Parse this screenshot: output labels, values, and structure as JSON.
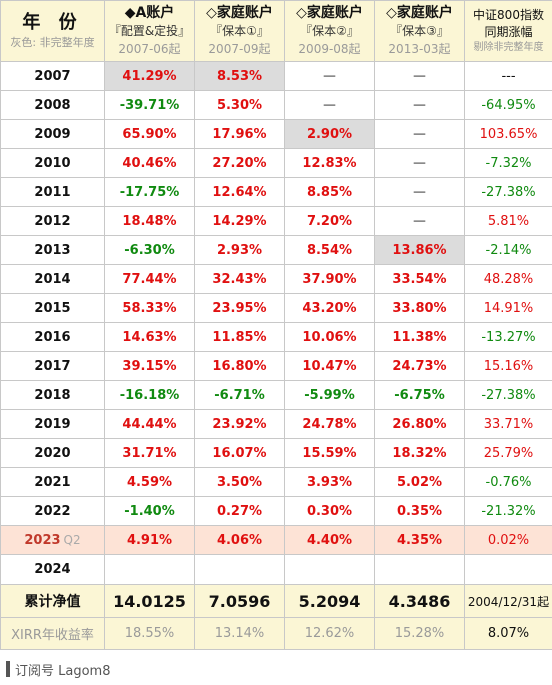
{
  "header": {
    "year_title": "年 份",
    "year_note": "灰色: 非完整年度",
    "columns": [
      {
        "title": "◆A账户",
        "subtitle": "『配置&定投』",
        "date": "2007-06起"
      },
      {
        "title": "◇家庭账户",
        "subtitle": "『保本①』",
        "date": "2007-09起"
      },
      {
        "title": "◇家庭账户",
        "subtitle": "『保本②』",
        "date": "2009-08起"
      },
      {
        "title": "◇家庭账户",
        "subtitle": "『保本③』",
        "date": "2013-03起"
      }
    ],
    "index_title_1": "中证800指数",
    "index_title_2": "同期涨幅",
    "index_note": "剔除非完整年度"
  },
  "rows": [
    {
      "year": "2007",
      "q": "",
      "a": "41.29%",
      "b": "8.53%",
      "c": "—",
      "d": "—",
      "idx": "---"
    },
    {
      "year": "2008",
      "q": "",
      "a": "-39.71%",
      "b": "5.30%",
      "c": "—",
      "d": "—",
      "idx": "-64.95%"
    },
    {
      "year": "2009",
      "q": "",
      "a": "65.90%",
      "b": "17.96%",
      "c": "2.90%",
      "d": "—",
      "idx": "103.65%"
    },
    {
      "year": "2010",
      "q": "",
      "a": "40.46%",
      "b": "27.20%",
      "c": "12.83%",
      "d": "—",
      "idx": "-7.32%"
    },
    {
      "year": "2011",
      "q": "",
      "a": "-17.75%",
      "b": "12.64%",
      "c": "8.85%",
      "d": "—",
      "idx": "-27.38%"
    },
    {
      "year": "2012",
      "q": "",
      "a": "18.48%",
      "b": "14.29%",
      "c": "7.20%",
      "d": "—",
      "idx": "5.81%"
    },
    {
      "year": "2013",
      "q": "",
      "a": "-6.30%",
      "b": "2.93%",
      "c": "8.54%",
      "d": "13.86%",
      "idx": "-2.14%"
    },
    {
      "year": "2014",
      "q": "",
      "a": "77.44%",
      "b": "32.43%",
      "c": "37.90%",
      "d": "33.54%",
      "idx": "48.28%"
    },
    {
      "year": "2015",
      "q": "",
      "a": "58.33%",
      "b": "23.95%",
      "c": "43.20%",
      "d": "33.80%",
      "idx": "14.91%"
    },
    {
      "year": "2016",
      "q": "",
      "a": "14.63%",
      "b": "11.85%",
      "c": "10.06%",
      "d": "11.38%",
      "idx": "-13.27%"
    },
    {
      "year": "2017",
      "q": "",
      "a": "39.15%",
      "b": "16.80%",
      "c": "10.47%",
      "d": "24.73%",
      "idx": "15.16%"
    },
    {
      "year": "2018",
      "q": "",
      "a": "-16.18%",
      "b": "-6.71%",
      "c": "-5.99%",
      "d": "-6.75%",
      "idx": "-27.38%"
    },
    {
      "year": "2019",
      "q": "",
      "a": "44.44%",
      "b": "23.92%",
      "c": "24.78%",
      "d": "26.80%",
      "idx": "33.71%"
    },
    {
      "year": "2020",
      "q": "",
      "a": "31.71%",
      "b": "16.07%",
      "c": "15.59%",
      "d": "18.32%",
      "idx": "25.79%"
    },
    {
      "year": "2021",
      "q": "",
      "a": "4.59%",
      "b": "3.50%",
      "c": "3.93%",
      "d": "5.02%",
      "idx": "-0.76%"
    },
    {
      "year": "2022",
      "q": "",
      "a": "-1.40%",
      "b": "0.27%",
      "c": "0.30%",
      "d": "0.35%",
      "idx": "-21.32%"
    },
    {
      "year": "2023",
      "q": "Q2",
      "a": "4.91%",
      "b": "4.06%",
      "c": "4.40%",
      "d": "4.35%",
      "idx": "0.02%"
    },
    {
      "year": "2024",
      "q": "",
      "a": "",
      "b": "",
      "c": "",
      "d": "",
      "idx": ""
    }
  ],
  "totals": {
    "nav_label": "累计净值",
    "nav": [
      "14.0125",
      "7.0596",
      "5.2094",
      "4.3486"
    ],
    "nav_date": "2004/12/31起",
    "xirr_label": "XIRR年收益率",
    "xirr": [
      "18.55%",
      "13.14%",
      "12.62%",
      "15.28%",
      "8.07%"
    ]
  },
  "footer": {
    "text": "订阅号 Lagom8"
  },
  "colors": {
    "positive": "#e01010",
    "negative": "#108a10",
    "header_bg": "#fbf6d5",
    "highlight_bg": "#dcdcdc",
    "row_2023_bg": "#fde3d6"
  }
}
